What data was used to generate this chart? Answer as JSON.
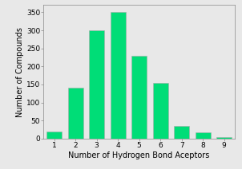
{
  "categories": [
    1,
    2,
    3,
    4,
    5,
    6,
    7,
    8,
    9
  ],
  "values": [
    20,
    140,
    300,
    350,
    230,
    155,
    35,
    18,
    5
  ],
  "bar_color": "#00DD77",
  "bar_edge_color": "#aaaaaa",
  "xlabel": "Number of Hydrogen Bond Aceptors",
  "ylabel": "Number of Compounds",
  "xlim": [
    0.5,
    9.5
  ],
  "ylim": [
    0,
    370
  ],
  "yticks": [
    0,
    50,
    100,
    150,
    200,
    250,
    300,
    350
  ],
  "xticks": [
    1,
    2,
    3,
    4,
    5,
    6,
    7,
    8,
    9
  ],
  "background_color": "#e8e8e8",
  "axes_background": "#e8e8e8",
  "xlabel_fontsize": 7.0,
  "ylabel_fontsize": 7.0,
  "tick_fontsize": 6.5,
  "bar_width": 0.72
}
